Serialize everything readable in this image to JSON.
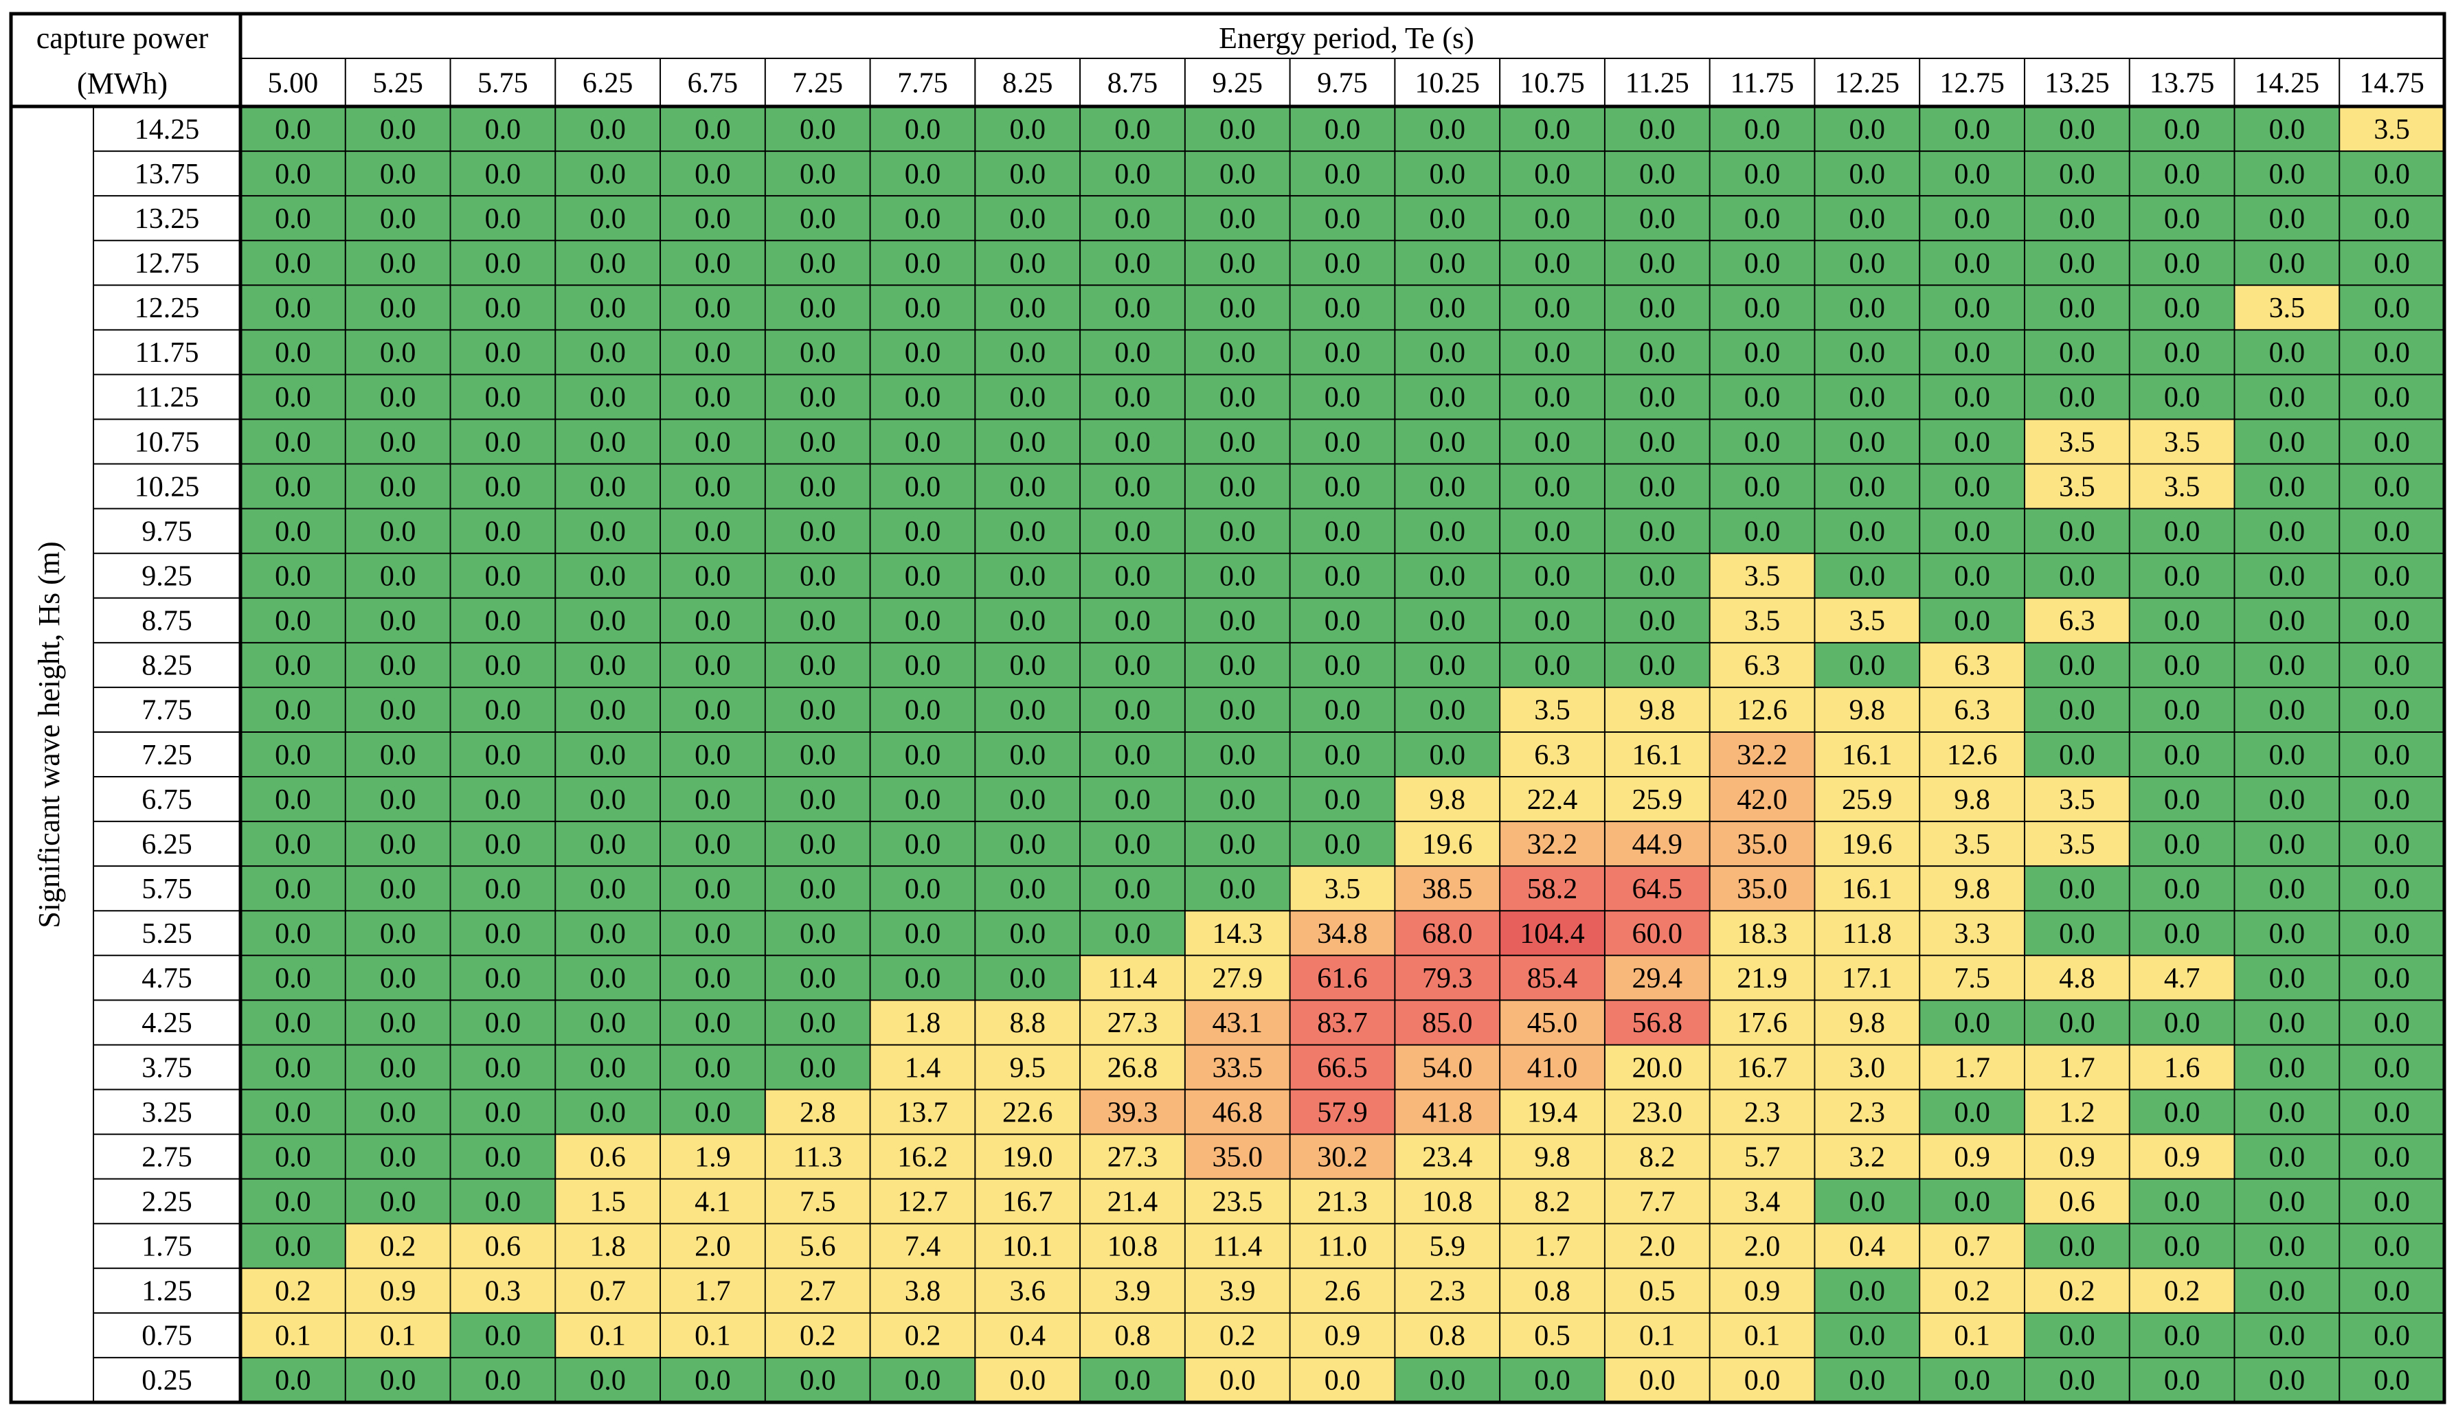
{
  "chart_data": {
    "type": "heatmap",
    "corner_label": [
      "capture power",
      "(MWh)"
    ],
    "xlabel": "Energy period, Te (s)",
    "ylabel": "Significant wave height, Hs (m)",
    "x": [
      "5.00",
      "5.25",
      "5.75",
      "6.25",
      "6.75",
      "7.25",
      "7.75",
      "8.25",
      "8.75",
      "9.25",
      "9.75",
      "10.25",
      "10.75",
      "11.25",
      "11.75",
      "12.25",
      "12.75",
      "13.25",
      "13.75",
      "14.25",
      "14.75"
    ],
    "y": [
      "14.25",
      "13.75",
      "13.25",
      "12.75",
      "12.25",
      "11.75",
      "11.25",
      "10.75",
      "10.25",
      "9.75",
      "9.25",
      "8.75",
      "8.25",
      "7.75",
      "7.25",
      "6.75",
      "6.25",
      "5.75",
      "5.25",
      "4.75",
      "4.25",
      "3.75",
      "3.25",
      "2.75",
      "2.25",
      "1.75",
      "1.25",
      "0.75",
      "0.25"
    ],
    "values": [
      [
        "0.0",
        "0.0",
        "0.0",
        "0.0",
        "0.0",
        "0.0",
        "0.0",
        "0.0",
        "0.0",
        "0.0",
        "0.0",
        "0.0",
        "0.0",
        "0.0",
        "0.0",
        "0.0",
        "0.0",
        "0.0",
        "0.0",
        "0.0",
        "3.5"
      ],
      [
        "0.0",
        "0.0",
        "0.0",
        "0.0",
        "0.0",
        "0.0",
        "0.0",
        "0.0",
        "0.0",
        "0.0",
        "0.0",
        "0.0",
        "0.0",
        "0.0",
        "0.0",
        "0.0",
        "0.0",
        "0.0",
        "0.0",
        "0.0",
        "0.0"
      ],
      [
        "0.0",
        "0.0",
        "0.0",
        "0.0",
        "0.0",
        "0.0",
        "0.0",
        "0.0",
        "0.0",
        "0.0",
        "0.0",
        "0.0",
        "0.0",
        "0.0",
        "0.0",
        "0.0",
        "0.0",
        "0.0",
        "0.0",
        "0.0",
        "0.0"
      ],
      [
        "0.0",
        "0.0",
        "0.0",
        "0.0",
        "0.0",
        "0.0",
        "0.0",
        "0.0",
        "0.0",
        "0.0",
        "0.0",
        "0.0",
        "0.0",
        "0.0",
        "0.0",
        "0.0",
        "0.0",
        "0.0",
        "0.0",
        "0.0",
        "0.0"
      ],
      [
        "0.0",
        "0.0",
        "0.0",
        "0.0",
        "0.0",
        "0.0",
        "0.0",
        "0.0",
        "0.0",
        "0.0",
        "0.0",
        "0.0",
        "0.0",
        "0.0",
        "0.0",
        "0.0",
        "0.0",
        "0.0",
        "0.0",
        "3.5",
        "0.0"
      ],
      [
        "0.0",
        "0.0",
        "0.0",
        "0.0",
        "0.0",
        "0.0",
        "0.0",
        "0.0",
        "0.0",
        "0.0",
        "0.0",
        "0.0",
        "0.0",
        "0.0",
        "0.0",
        "0.0",
        "0.0",
        "0.0",
        "0.0",
        "0.0",
        "0.0"
      ],
      [
        "0.0",
        "0.0",
        "0.0",
        "0.0",
        "0.0",
        "0.0",
        "0.0",
        "0.0",
        "0.0",
        "0.0",
        "0.0",
        "0.0",
        "0.0",
        "0.0",
        "0.0",
        "0.0",
        "0.0",
        "0.0",
        "0.0",
        "0.0",
        "0.0"
      ],
      [
        "0.0",
        "0.0",
        "0.0",
        "0.0",
        "0.0",
        "0.0",
        "0.0",
        "0.0",
        "0.0",
        "0.0",
        "0.0",
        "0.0",
        "0.0",
        "0.0",
        "0.0",
        "0.0",
        "0.0",
        "3.5",
        "3.5",
        "0.0",
        "0.0"
      ],
      [
        "0.0",
        "0.0",
        "0.0",
        "0.0",
        "0.0",
        "0.0",
        "0.0",
        "0.0",
        "0.0",
        "0.0",
        "0.0",
        "0.0",
        "0.0",
        "0.0",
        "0.0",
        "0.0",
        "0.0",
        "3.5",
        "3.5",
        "0.0",
        "0.0"
      ],
      [
        "0.0",
        "0.0",
        "0.0",
        "0.0",
        "0.0",
        "0.0",
        "0.0",
        "0.0",
        "0.0",
        "0.0",
        "0.0",
        "0.0",
        "0.0",
        "0.0",
        "0.0",
        "0.0",
        "0.0",
        "0.0",
        "0.0",
        "0.0",
        "0.0"
      ],
      [
        "0.0",
        "0.0",
        "0.0",
        "0.0",
        "0.0",
        "0.0",
        "0.0",
        "0.0",
        "0.0",
        "0.0",
        "0.0",
        "0.0",
        "0.0",
        "0.0",
        "3.5",
        "0.0",
        "0.0",
        "0.0",
        "0.0",
        "0.0",
        "0.0"
      ],
      [
        "0.0",
        "0.0",
        "0.0",
        "0.0",
        "0.0",
        "0.0",
        "0.0",
        "0.0",
        "0.0",
        "0.0",
        "0.0",
        "0.0",
        "0.0",
        "0.0",
        "3.5",
        "3.5",
        "0.0",
        "6.3",
        "0.0",
        "0.0",
        "0.0"
      ],
      [
        "0.0",
        "0.0",
        "0.0",
        "0.0",
        "0.0",
        "0.0",
        "0.0",
        "0.0",
        "0.0",
        "0.0",
        "0.0",
        "0.0",
        "0.0",
        "0.0",
        "6.3",
        "0.0",
        "6.3",
        "0.0",
        "0.0",
        "0.0",
        "0.0"
      ],
      [
        "0.0",
        "0.0",
        "0.0",
        "0.0",
        "0.0",
        "0.0",
        "0.0",
        "0.0",
        "0.0",
        "0.0",
        "0.0",
        "0.0",
        "3.5",
        "9.8",
        "12.6",
        "9.8",
        "6.3",
        "0.0",
        "0.0",
        "0.0",
        "0.0"
      ],
      [
        "0.0",
        "0.0",
        "0.0",
        "0.0",
        "0.0",
        "0.0",
        "0.0",
        "0.0",
        "0.0",
        "0.0",
        "0.0",
        "0.0",
        "6.3",
        "16.1",
        "32.2",
        "16.1",
        "12.6",
        "0.0",
        "0.0",
        "0.0",
        "0.0"
      ],
      [
        "0.0",
        "0.0",
        "0.0",
        "0.0",
        "0.0",
        "0.0",
        "0.0",
        "0.0",
        "0.0",
        "0.0",
        "0.0",
        "9.8",
        "22.4",
        "25.9",
        "42.0",
        "25.9",
        "9.8",
        "3.5",
        "0.0",
        "0.0",
        "0.0"
      ],
      [
        "0.0",
        "0.0",
        "0.0",
        "0.0",
        "0.0",
        "0.0",
        "0.0",
        "0.0",
        "0.0",
        "0.0",
        "0.0",
        "19.6",
        "32.2",
        "44.9",
        "35.0",
        "19.6",
        "3.5",
        "3.5",
        "0.0",
        "0.0",
        "0.0"
      ],
      [
        "0.0",
        "0.0",
        "0.0",
        "0.0",
        "0.0",
        "0.0",
        "0.0",
        "0.0",
        "0.0",
        "0.0",
        "3.5",
        "38.5",
        "58.2",
        "64.5",
        "35.0",
        "16.1",
        "9.8",
        "0.0",
        "0.0",
        "0.0",
        "0.0"
      ],
      [
        "0.0",
        "0.0",
        "0.0",
        "0.0",
        "0.0",
        "0.0",
        "0.0",
        "0.0",
        "0.0",
        "14.3",
        "34.8",
        "68.0",
        "104.4",
        "60.0",
        "18.3",
        "11.8",
        "3.3",
        "0.0",
        "0.0",
        "0.0",
        "0.0"
      ],
      [
        "0.0",
        "0.0",
        "0.0",
        "0.0",
        "0.0",
        "0.0",
        "0.0",
        "0.0",
        "11.4",
        "27.9",
        "61.6",
        "79.3",
        "85.4",
        "29.4",
        "21.9",
        "17.1",
        "7.5",
        "4.8",
        "4.7",
        "0.0",
        "0.0"
      ],
      [
        "0.0",
        "0.0",
        "0.0",
        "0.0",
        "0.0",
        "0.0",
        "1.8",
        "8.8",
        "27.3",
        "43.1",
        "83.7",
        "85.0",
        "45.0",
        "56.8",
        "17.6",
        "9.8",
        "0.0",
        "0.0",
        "0.0",
        "0.0",
        "0.0"
      ],
      [
        "0.0",
        "0.0",
        "0.0",
        "0.0",
        "0.0",
        "0.0",
        "1.4",
        "9.5",
        "26.8",
        "33.5",
        "66.5",
        "54.0",
        "41.0",
        "20.0",
        "16.7",
        "3.0",
        "1.7",
        "1.7",
        "1.6",
        "0.0",
        "0.0"
      ],
      [
        "0.0",
        "0.0",
        "0.0",
        "0.0",
        "0.0",
        "2.8",
        "13.7",
        "22.6",
        "39.3",
        "46.8",
        "57.9",
        "41.8",
        "19.4",
        "23.0",
        "2.3",
        "2.3",
        "0.0",
        "1.2",
        "0.0",
        "0.0",
        "0.0"
      ],
      [
        "0.0",
        "0.0",
        "0.0",
        "0.6",
        "1.9",
        "11.3",
        "16.2",
        "19.0",
        "27.3",
        "35.0",
        "30.2",
        "23.4",
        "9.8",
        "8.2",
        "5.7",
        "3.2",
        "0.9",
        "0.9",
        "0.9",
        "0.0",
        "0.0"
      ],
      [
        "0.0",
        "0.0",
        "0.0",
        "1.5",
        "4.1",
        "7.5",
        "12.7",
        "16.7",
        "21.4",
        "23.5",
        "21.3",
        "10.8",
        "8.2",
        "7.7",
        "3.4",
        "0.0",
        "0.0",
        "0.6",
        "0.0",
        "0.0",
        "0.0"
      ],
      [
        "0.0",
        "0.2",
        "0.6",
        "1.8",
        "2.0",
        "5.6",
        "7.4",
        "10.1",
        "10.8",
        "11.4",
        "11.0",
        "5.9",
        "1.7",
        "2.0",
        "2.0",
        "0.4",
        "0.7",
        "0.0",
        "0.0",
        "0.0",
        "0.0"
      ],
      [
        "0.2",
        "0.9",
        "0.3",
        "0.7",
        "1.7",
        "2.7",
        "3.8",
        "3.6",
        "3.9",
        "3.9",
        "2.6",
        "2.3",
        "0.8",
        "0.5",
        "0.9",
        "0.0",
        "0.2",
        "0.2",
        "0.2",
        "0.0",
        "0.0"
      ],
      [
        "0.1",
        "0.1",
        "0.0",
        "0.1",
        "0.1",
        "0.2",
        "0.2",
        "0.4",
        "0.8",
        "0.2",
        "0.9",
        "0.8",
        "0.5",
        "0.1",
        "0.1",
        "0.0",
        "0.1",
        "0.0",
        "0.0",
        "0.0",
        "0.0"
      ],
      [
        "0.0",
        "0.0",
        "0.0",
        "0.0",
        "0.0",
        "0.0",
        "0.0",
        "0.0",
        "0.0",
        "0.0",
        "0.0",
        "0.0",
        "0.0",
        "0.0",
        "0.0",
        "0.0",
        "0.0",
        "0.0",
        "0.0",
        "0.0",
        "0.0"
      ]
    ],
    "yellow_cells_with_zero": [
      [
        28,
        7
      ],
      [
        28,
        9
      ],
      [
        28,
        10
      ],
      [
        28,
        13
      ],
      [
        28,
        14
      ]
    ],
    "colors": {
      "zero": "#5db56a",
      "low": "#fce484",
      "mid": "#f8b87a",
      "high": "#f17b6b",
      "peak": "#e8605c",
      "border": "#000000"
    }
  }
}
